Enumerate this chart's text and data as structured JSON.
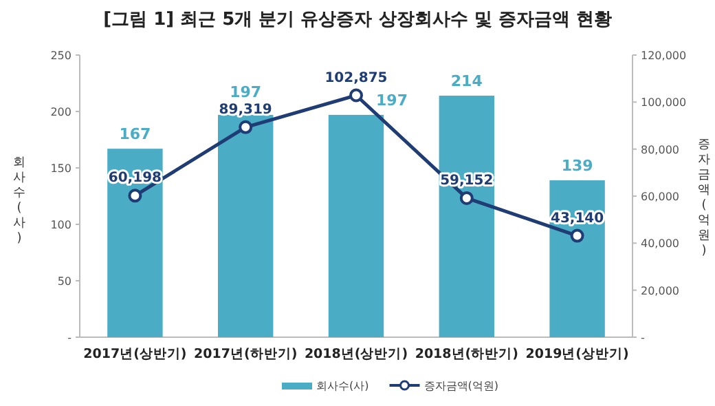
{
  "chart_data": {
    "type": "bar",
    "title": "[그림 1] 최근 5개 분기 유상증자 상장회사수 및 증자금액 현황",
    "categories": [
      "2017년(상반기)",
      "2017년(하반기)",
      "2018년(상반기)",
      "2018년(하반기)",
      "2019년(상반기)"
    ],
    "ylabel": "회사수(사)",
    "y2label": "증자금액(억원)",
    "ylim": [
      0,
      250
    ],
    "yticks": [
      {
        "value": 0,
        "label": "-"
      },
      50,
      100,
      150,
      200,
      250
    ],
    "y2lim": [
      0,
      120000
    ],
    "y2ticks": [
      {
        "value": 0,
        "label": "-"
      },
      {
        "value": 20000,
        "label": "20,000"
      },
      {
        "value": 40000,
        "label": "40,000"
      },
      {
        "value": 60000,
        "label": "60,000"
      },
      {
        "value": 80000,
        "label": "80,000"
      },
      {
        "value": 100000,
        "label": "100,000"
      },
      {
        "value": 120000,
        "label": "120,000"
      }
    ],
    "series": [
      {
        "name": "회사수(사)",
        "color": "#4bacc6",
        "values": [
          167,
          197,
          197,
          214,
          139
        ],
        "value_labels": [
          "167",
          "197",
          "197",
          "214",
          "139"
        ]
      },
      {
        "name": "증자금액(억원)",
        "type": "line",
        "axis": "y2",
        "color": "#1f3c74",
        "marker": "circle",
        "values": [
          60198,
          89319,
          102875,
          59152,
          43140
        ],
        "value_labels": [
          "60,198",
          "89,319",
          "102,875",
          "59,152",
          "43,140"
        ]
      }
    ],
    "legend": "bottom",
    "grid": false
  }
}
